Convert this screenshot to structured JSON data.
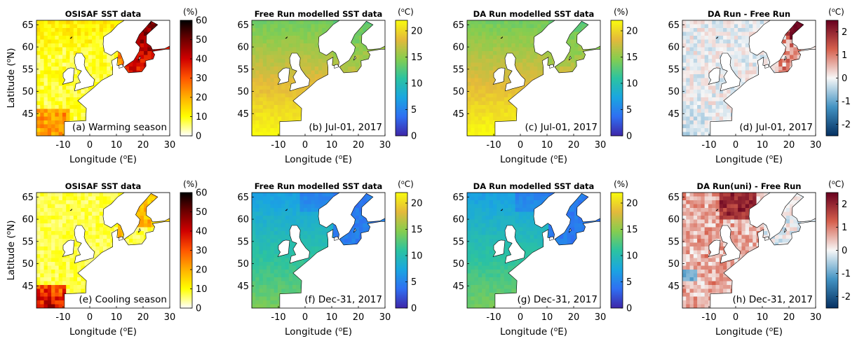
{
  "chart_data": [
    {
      "type": "heatmap",
      "title": "OSISAF SST data",
      "unit": "(%)",
      "cbar_ticks": [
        0,
        10,
        20,
        30,
        40,
        50,
        60
      ],
      "panel_label": "(a) Warming season",
      "xlabel": "Longitude (°E)",
      "ylabel": "Latitude (°N)",
      "xticks": [
        -10,
        0,
        10,
        20,
        30
      ],
      "yticks": [
        45,
        50,
        55,
        60,
        65
      ],
      "xlim": [
        -20,
        30
      ],
      "ylim": [
        40,
        66
      ],
      "cbar_range": [
        0,
        60
      ],
      "colormap": "hot-reversed"
    },
    {
      "type": "heatmap",
      "title": "Free Run modelled SST data",
      "unit": "(°C)",
      "cbar_ticks": [
        0,
        5,
        10,
        15,
        20
      ],
      "panel_label": "(b) Jul-01, 2017",
      "xlabel": "Longitude (°E)",
      "xticks": [
        -10,
        0,
        10,
        20,
        30
      ],
      "yticks": [
        45,
        50,
        55,
        60,
        65
      ],
      "xlim": [
        -20,
        30
      ],
      "ylim": [
        40,
        66
      ],
      "cbar_range": [
        0,
        22
      ],
      "colormap": "parula"
    },
    {
      "type": "heatmap",
      "title": "DA Run modelled SST data",
      "unit": "(%)",
      "cbar_ticks": [
        0,
        5,
        10,
        15,
        20
      ],
      "panel_label": "(c) Jul-01, 2017",
      "xlabel": "Longitude (°E)",
      "xticks": [
        -10,
        0,
        10,
        20,
        30
      ],
      "yticks": [
        45,
        50,
        55,
        60,
        65
      ],
      "xlim": [
        -20,
        30
      ],
      "ylim": [
        40,
        66
      ],
      "cbar_range": [
        0,
        22
      ],
      "colormap": "parula"
    },
    {
      "type": "heatmap",
      "title": "DA Run - Free Run",
      "unit": "(°C)",
      "cbar_ticks": [
        -2,
        -1,
        0,
        1,
        2
      ],
      "panel_label": "(d) Jul-01, 2017",
      "xlabel": "Longitude (°E)",
      "xticks": [
        -10,
        0,
        10,
        20,
        30
      ],
      "yticks": [
        45,
        50,
        55,
        60,
        65
      ],
      "xlim": [
        -20,
        30
      ],
      "ylim": [
        40,
        66
      ],
      "cbar_range": [
        -2.5,
        2.5
      ],
      "colormap": "red-blue"
    },
    {
      "type": "heatmap",
      "title": "OSISAF SST data",
      "unit": "(%)",
      "cbar_ticks": [
        0,
        10,
        20,
        30,
        40,
        50,
        60
      ],
      "panel_label": "(e) Cooling season",
      "xlabel": "Longitude (°E)",
      "ylabel": "Latitude (°N)",
      "xticks": [
        -10,
        0,
        10,
        20,
        30
      ],
      "yticks": [
        45,
        50,
        55,
        60,
        65
      ],
      "xlim": [
        -20,
        30
      ],
      "ylim": [
        40,
        66
      ],
      "cbar_range": [
        0,
        60
      ],
      "colormap": "hot-reversed"
    },
    {
      "type": "heatmap",
      "title": "Free Run modelled SST data",
      "unit": "(°C)",
      "cbar_ticks": [
        0,
        5,
        10,
        15,
        20
      ],
      "panel_label": "(f) Dec-31, 2017",
      "xlabel": "Longitude (°E)",
      "xticks": [
        -10,
        0,
        10,
        20,
        30
      ],
      "yticks": [
        45,
        50,
        55,
        60,
        65
      ],
      "xlim": [
        -20,
        30
      ],
      "ylim": [
        40,
        66
      ],
      "cbar_range": [
        0,
        22
      ],
      "colormap": "parula"
    },
    {
      "type": "heatmap",
      "title": "DA Run modelled SST data",
      "unit": "(%)",
      "cbar_ticks": [
        0,
        5,
        10,
        15,
        20
      ],
      "panel_label": "(g) Dec-31, 2017",
      "xlabel": "Longitude (°E)",
      "xticks": [
        -10,
        0,
        10,
        20,
        30
      ],
      "yticks": [
        45,
        50,
        55,
        60,
        65
      ],
      "xlim": [
        -20,
        30
      ],
      "ylim": [
        40,
        66
      ],
      "cbar_range": [
        0,
        22
      ],
      "colormap": "parula"
    },
    {
      "type": "heatmap",
      "title": "DA Run(uni) - Free Run",
      "unit": "(°C)",
      "cbar_ticks": [
        -2,
        -1,
        0,
        1,
        2
      ],
      "panel_label": "(h) Dec-31, 2017",
      "xlabel": "Longitude (°E)",
      "xticks": [
        -10,
        0,
        10,
        20,
        30
      ],
      "yticks": [
        45,
        50,
        55,
        60,
        65
      ],
      "xlim": [
        -20,
        30
      ],
      "ylim": [
        40,
        66
      ],
      "cbar_range": [
        -2.5,
        2.5
      ],
      "colormap": "red-blue"
    }
  ],
  "colormaps": {
    "hot-reversed": [
      "#ffffff",
      "#ffff00",
      "#ffb000",
      "#ff5500",
      "#d00000",
      "#700000",
      "#000000"
    ],
    "parula": [
      "#3e26a8",
      "#2f6ff2",
      "#1aa6e0",
      "#2cc3a0",
      "#86cd4f",
      "#e4b93b",
      "#f9fb0e"
    ],
    "red-blue": [
      "#053061",
      "#4393c3",
      "#f7f7f7",
      "#d6604d",
      "#67001f"
    ]
  },
  "background_color": "#ffffff"
}
